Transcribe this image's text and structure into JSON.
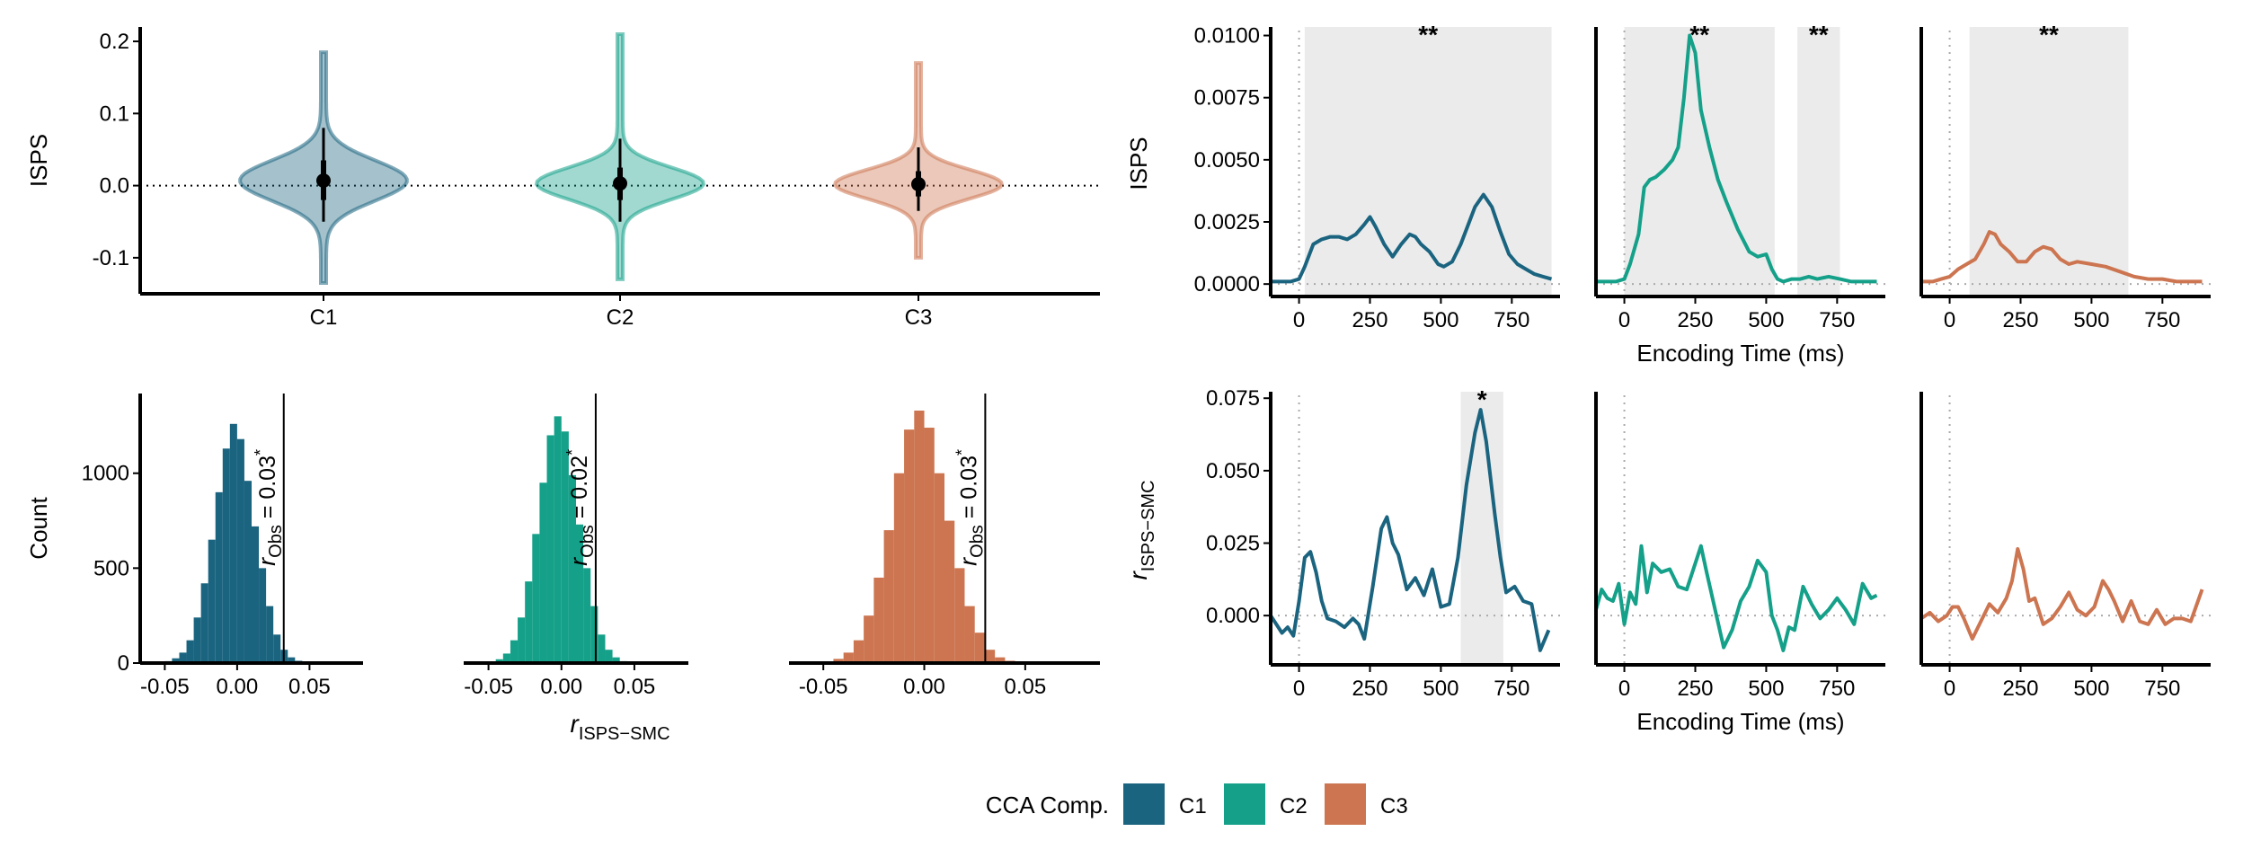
{
  "legend": {
    "title": "CCA Comp.",
    "position": "bottom",
    "items": [
      {
        "label": "C1",
        "color": "#1b6480"
      },
      {
        "label": "C2",
        "color": "#14a089"
      },
      {
        "label": "C3",
        "color": "#cc7550"
      }
    ]
  },
  "chart_data": [
    {
      "id": "violin",
      "type": "violin",
      "ylabel": "ISPS",
      "categories": [
        "C1",
        "C2",
        "C3"
      ],
      "ylim": [
        -0.15,
        0.22
      ],
      "yticks": [
        -0.1,
        0.0,
        0.1,
        0.2
      ],
      "ytick_labels": [
        "-0.1",
        "0.0",
        "0.1",
        "0.2"
      ],
      "reference_line": 0.0,
      "series": [
        {
          "category": "C1",
          "min": -0.135,
          "max": 0.185,
          "mean": 0.007,
          "ci": [
            -0.02,
            0.035
          ],
          "range": [
            -0.05,
            0.08
          ],
          "spread": 0.028
        },
        {
          "category": "C2",
          "min": -0.13,
          "max": 0.21,
          "mean": 0.003,
          "ci": [
            -0.02,
            0.025
          ],
          "range": [
            -0.05,
            0.065
          ],
          "spread": 0.022
        },
        {
          "category": "C3",
          "min": -0.1,
          "max": 0.17,
          "mean": 0.002,
          "ci": [
            -0.015,
            0.02
          ],
          "range": [
            -0.035,
            0.053
          ],
          "spread": 0.02
        }
      ]
    },
    {
      "id": "isps-time",
      "type": "line",
      "xlabel": "Encoding Time (ms)",
      "ylabel": "ISPS",
      "xlim": [
        -100,
        920
      ],
      "ylim": [
        -0.0005,
        0.0102
      ],
      "xticks": [
        0,
        250,
        500,
        750
      ],
      "yticks": [
        0.0,
        0.0025,
        0.005,
        0.0075,
        0.01
      ],
      "ytick_labels": [
        "0.0000",
        "0.0025",
        "0.0050",
        "0.0075",
        "0.0100"
      ],
      "panels": [
        {
          "series": "C1",
          "significant_windows": [
            [
              20,
              890
            ]
          ],
          "annotations": [
            "**"
          ],
          "x": [
            -100,
            -60,
            -30,
            0,
            20,
            50,
            80,
            110,
            140,
            170,
            200,
            230,
            250,
            270,
            300,
            330,
            360,
            390,
            410,
            430,
            460,
            490,
            510,
            540,
            570,
            600,
            620,
            650,
            680,
            710,
            740,
            770,
            800,
            830,
            860,
            890
          ],
          "y": [
            0.0001,
            0.0001,
            0.0001,
            0.0002,
            0.0007,
            0.0016,
            0.0018,
            0.0019,
            0.0019,
            0.0018,
            0.002,
            0.0024,
            0.0027,
            0.0023,
            0.0016,
            0.0011,
            0.0016,
            0.002,
            0.0019,
            0.0016,
            0.0013,
            0.0008,
            0.0007,
            0.0009,
            0.0016,
            0.0025,
            0.0031,
            0.0036,
            0.0031,
            0.0021,
            0.0012,
            0.0008,
            0.0006,
            0.0004,
            0.0003,
            0.0002
          ]
        },
        {
          "series": "C2",
          "significant_windows": [
            [
              0,
              530
            ],
            [
              610,
              760
            ]
          ],
          "annotations": [
            "**",
            "**"
          ],
          "x": [
            -100,
            -60,
            -30,
            0,
            20,
            50,
            70,
            90,
            110,
            140,
            170,
            190,
            210,
            230,
            250,
            270,
            300,
            330,
            360,
            400,
            440,
            470,
            500,
            520,
            540,
            560,
            590,
            620,
            650,
            680,
            720,
            760,
            800,
            850,
            890
          ],
          "y": [
            0.0001,
            0.0001,
            0.0001,
            0.0002,
            0.0008,
            0.002,
            0.0039,
            0.0042,
            0.0043,
            0.0046,
            0.005,
            0.0055,
            0.0075,
            0.01,
            0.0093,
            0.007,
            0.0055,
            0.0042,
            0.0033,
            0.0022,
            0.0013,
            0.0011,
            0.0012,
            0.0006,
            0.0002,
            0.0001,
            0.0002,
            0.0002,
            0.0003,
            0.0002,
            0.0003,
            0.0002,
            0.0001,
            0.0001,
            0.0001
          ]
        },
        {
          "series": "C3",
          "significant_windows": [
            [
              70,
              630
            ]
          ],
          "annotations": [
            "**"
          ],
          "x": [
            -100,
            -60,
            -30,
            0,
            30,
            60,
            90,
            120,
            140,
            160,
            180,
            210,
            240,
            270,
            300,
            330,
            360,
            390,
            420,
            450,
            500,
            550,
            600,
            650,
            700,
            750,
            800,
            850,
            890
          ],
          "y": [
            0.0001,
            0.0001,
            0.0002,
            0.0003,
            0.0006,
            0.0008,
            0.001,
            0.0016,
            0.0021,
            0.002,
            0.0016,
            0.0013,
            0.0009,
            0.0009,
            0.0013,
            0.0015,
            0.0014,
            0.001,
            0.0008,
            0.0009,
            0.0008,
            0.0007,
            0.0005,
            0.0003,
            0.0002,
            0.0002,
            0.0001,
            0.0001,
            0.0001
          ]
        }
      ]
    },
    {
      "id": "null-distributions",
      "type": "bar",
      "xlabel_main": "r",
      "xlabel_sub": "ISPS−SMC",
      "ylabel": "Count",
      "xlim": [
        -0.067,
        0.087
      ],
      "ylim": [
        0,
        1420
      ],
      "xticks": [
        -0.05,
        0.0,
        0.05
      ],
      "xtick_labels": [
        "-0.05",
        "0.00",
        "0.05"
      ],
      "yticks": [
        0,
        500,
        1000
      ],
      "bin_width": 0.005,
      "bin_start": -0.05,
      "panels": [
        {
          "series": "C1",
          "observed": 0.0322,
          "observed_label": "= 0.03",
          "observed_main": "r",
          "observed_sub": "Obs",
          "significance": "*",
          "counts": [
            10,
            25,
            55,
            120,
            240,
            420,
            650,
            900,
            1130,
            1260,
            1180,
            960,
            720,
            500,
            300,
            150,
            70,
            30,
            12,
            5
          ]
        },
        {
          "series": "C2",
          "observed": 0.0235,
          "observed_label": "= 0.02",
          "observed_main": "r",
          "observed_sub": "Obs",
          "significance": "*",
          "counts": [
            8,
            20,
            50,
            120,
            240,
            430,
            680,
            950,
            1200,
            1300,
            1220,
            990,
            730,
            500,
            300,
            150,
            70,
            30,
            10,
            5
          ]
        },
        {
          "series": "C3",
          "observed": 0.0302,
          "observed_label": "= 0.03",
          "observed_main": "r",
          "observed_sub": "Obs",
          "significance": "*",
          "counts": [
            8,
            22,
            55,
            120,
            250,
            450,
            700,
            1000,
            1230,
            1330,
            1240,
            1000,
            750,
            500,
            300,
            160,
            70,
            30,
            12,
            5
          ]
        }
      ]
    },
    {
      "id": "r-time",
      "type": "line",
      "xlabel": "Encoding Time (ms)",
      "ylabel_main": "r",
      "ylabel_sub": "ISPS−SMC",
      "xlim": [
        -100,
        920
      ],
      "ylim": [
        -0.017,
        0.076
      ],
      "xticks": [
        0,
        250,
        500,
        750
      ],
      "yticks": [
        0.0,
        0.025,
        0.05,
        0.075
      ],
      "ytick_labels": [
        "0.000",
        "0.025",
        "0.050",
        "0.075"
      ],
      "panels": [
        {
          "series": "C1",
          "significant_windows": [
            [
              570,
              720
            ]
          ],
          "annotations": [
            "*"
          ],
          "x": [
            -100,
            -80,
            -60,
            -40,
            -20,
            0,
            20,
            40,
            60,
            80,
            100,
            130,
            160,
            190,
            210,
            230,
            260,
            290,
            310,
            330,
            350,
            380,
            410,
            440,
            470,
            500,
            530,
            560,
            590,
            620,
            640,
            660,
            690,
            710,
            730,
            760,
            790,
            820,
            850,
            880
          ],
          "y": [
            0.0,
            -0.003,
            -0.006,
            -0.004,
            -0.007,
            0.005,
            0.02,
            0.022,
            0.015,
            0.005,
            -0.001,
            -0.002,
            -0.004,
            -0.001,
            -0.003,
            -0.008,
            0.01,
            0.03,
            0.034,
            0.025,
            0.021,
            0.009,
            0.013,
            0.007,
            0.016,
            0.003,
            0.004,
            0.02,
            0.045,
            0.063,
            0.071,
            0.06,
            0.035,
            0.02,
            0.008,
            0.01,
            0.005,
            0.004,
            -0.012,
            -0.005
          ]
        },
        {
          "series": "C2",
          "significant_windows": [],
          "annotations": [],
          "x": [
            -100,
            -80,
            -60,
            -40,
            -20,
            0,
            20,
            40,
            60,
            80,
            100,
            130,
            160,
            190,
            220,
            250,
            270,
            290,
            320,
            350,
            380,
            410,
            440,
            470,
            500,
            520,
            540,
            560,
            580,
            600,
            630,
            660,
            690,
            720,
            750,
            780,
            810,
            840,
            870,
            890
          ],
          "y": [
            0.002,
            0.009,
            0.006,
            0.005,
            0.011,
            -0.003,
            0.008,
            0.004,
            0.024,
            0.008,
            0.018,
            0.015,
            0.016,
            0.01,
            0.009,
            0.018,
            0.024,
            0.015,
            0.002,
            -0.011,
            -0.005,
            0.005,
            0.01,
            0.019,
            0.015,
            0.0,
            -0.005,
            -0.012,
            -0.004,
            -0.005,
            0.01,
            0.004,
            -0.001,
            0.002,
            0.006,
            0.002,
            -0.003,
            0.011,
            0.006,
            0.007
          ]
        },
        {
          "series": "C3",
          "significant_windows": [],
          "annotations": [],
          "x": [
            -100,
            -70,
            -40,
            -10,
            10,
            30,
            50,
            80,
            110,
            140,
            170,
            200,
            220,
            240,
            260,
            280,
            300,
            330,
            360,
            390,
            420,
            450,
            480,
            510,
            540,
            560,
            580,
            610,
            640,
            670,
            700,
            730,
            760,
            790,
            820,
            850,
            890
          ],
          "y": [
            -0.001,
            0.001,
            -0.002,
            0.0,
            0.003,
            0.003,
            -0.001,
            -0.008,
            -0.002,
            0.004,
            0.001,
            0.006,
            0.012,
            0.023,
            0.016,
            0.005,
            0.006,
            -0.003,
            -0.001,
            0.003,
            0.008,
            0.002,
            0.0,
            0.003,
            0.012,
            0.009,
            0.005,
            -0.002,
            0.005,
            -0.002,
            -0.003,
            0.002,
            -0.003,
            -0.001,
            -0.001,
            -0.002,
            0.009
          ]
        }
      ]
    }
  ]
}
